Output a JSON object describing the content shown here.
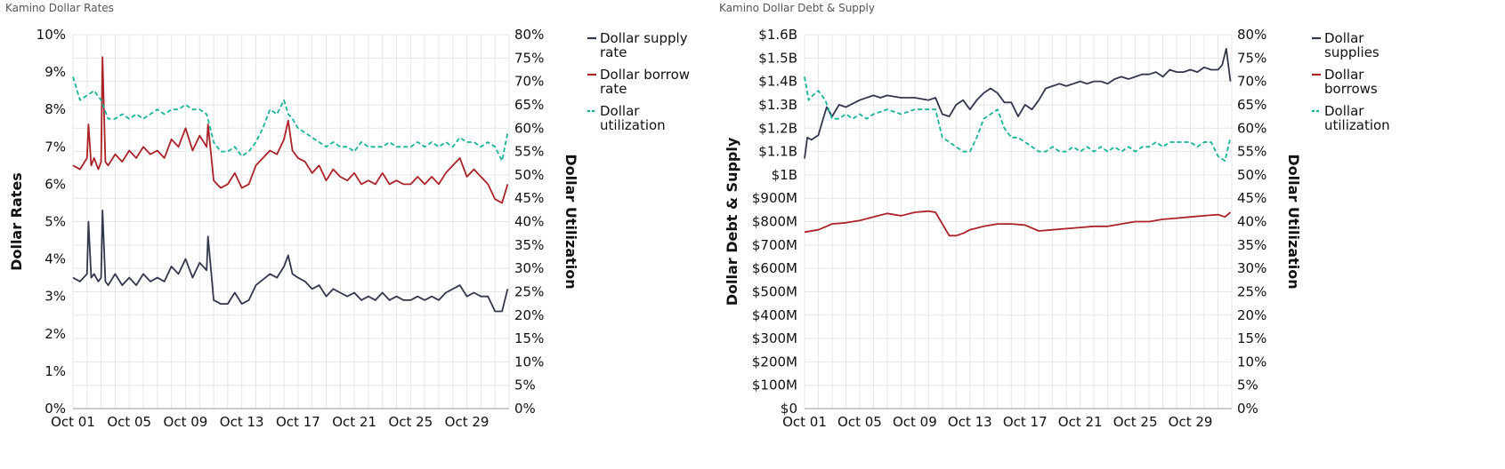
{
  "colors": {
    "supply": "#32374b",
    "borrow": "#ab2228",
    "utilization": "#1ab39a",
    "grid": "#e6e6e6"
  },
  "chart_data": [
    {
      "type": "line",
      "title": "Kamino Dollar Rates",
      "ylabel": "Dollar Rates",
      "y2label": "Dollar Utilization",
      "x_ticks": [
        "Oct 01",
        "Oct 05",
        "Oct 09",
        "Oct 13",
        "Oct 17",
        "Oct 21",
        "Oct 25",
        "Oct 29"
      ],
      "xlim": [
        0,
        31
      ],
      "y_ticks": [
        "0%",
        "1%",
        "2%",
        "3%",
        "4%",
        "5%",
        "6%",
        "7%",
        "8%",
        "9%",
        "10%"
      ],
      "ylim": [
        0,
        10
      ],
      "y2_ticks": [
        "0%",
        "5%",
        "10%",
        "15%",
        "20%",
        "25%",
        "30%",
        "35%",
        "40%",
        "45%",
        "50%",
        "55%",
        "60%",
        "65%",
        "70%",
        "75%",
        "80%"
      ],
      "y2lim": [
        0,
        80
      ],
      "legend": [
        "Dollar supply rate",
        "Dollar borrow rate",
        "Dollar utilization"
      ],
      "legend_position": "right",
      "grid": true,
      "series": [
        {
          "name": "Dollar supply rate",
          "axis": "left",
          "style": "solid",
          "x": [
            0,
            0.5,
            1,
            1.1,
            1.3,
            1.5,
            1.8,
            2,
            2.1,
            2.3,
            2.5,
            3,
            3.5,
            4,
            4.5,
            5,
            5.5,
            6,
            6.5,
            7,
            7.5,
            8,
            8.5,
            9,
            9.5,
            9.6,
            10,
            10.5,
            11,
            11.5,
            12,
            12.5,
            13,
            14,
            14.5,
            15,
            15.3,
            15.6,
            16,
            16.5,
            17,
            17.5,
            18,
            18.5,
            19,
            19.5,
            20,
            20.5,
            21,
            21.5,
            22,
            22.5,
            23,
            23.5,
            24,
            24.5,
            25,
            25.5,
            26,
            26.5,
            27,
            27.5,
            28,
            28.5,
            29,
            29.5,
            30,
            30.5,
            30.9
          ],
          "values": [
            3.5,
            3.4,
            3.6,
            5.0,
            3.5,
            3.6,
            3.4,
            3.5,
            5.3,
            3.4,
            3.3,
            3.6,
            3.3,
            3.5,
            3.3,
            3.6,
            3.4,
            3.5,
            3.4,
            3.8,
            3.6,
            4.0,
            3.5,
            3.9,
            3.7,
            4.6,
            2.9,
            2.8,
            2.8,
            3.1,
            2.8,
            2.9,
            3.3,
            3.6,
            3.5,
            3.8,
            4.1,
            3.6,
            3.5,
            3.4,
            3.2,
            3.3,
            3.0,
            3.2,
            3.1,
            3.0,
            3.1,
            2.9,
            3.0,
            2.9,
            3.1,
            2.9,
            3.0,
            2.9,
            2.9,
            3.0,
            2.9,
            3.0,
            2.9,
            3.1,
            3.2,
            3.3,
            3.0,
            3.1,
            3.0,
            3.0,
            2.6,
            2.6,
            3.2
          ]
        },
        {
          "name": "Dollar borrow rate",
          "axis": "left",
          "style": "solid",
          "x": [
            0,
            0.5,
            1,
            1.1,
            1.3,
            1.5,
            1.8,
            2,
            2.1,
            2.3,
            2.5,
            3,
            3.5,
            4,
            4.5,
            5,
            5.5,
            6,
            6.5,
            7,
            7.5,
            8,
            8.5,
            9,
            9.5,
            9.6,
            10,
            10.5,
            11,
            11.5,
            12,
            12.5,
            13,
            14,
            14.5,
            15,
            15.3,
            15.6,
            16,
            16.5,
            17,
            17.5,
            18,
            18.5,
            19,
            19.5,
            20,
            20.5,
            21,
            21.5,
            22,
            22.5,
            23,
            23.5,
            24,
            24.5,
            25,
            25.5,
            26,
            26.5,
            27,
            27.5,
            28,
            28.5,
            29,
            29.5,
            30,
            30.5,
            30.9
          ],
          "values": [
            6.5,
            6.4,
            6.7,
            7.6,
            6.5,
            6.7,
            6.4,
            6.6,
            9.4,
            6.6,
            6.5,
            6.8,
            6.6,
            6.9,
            6.7,
            7.0,
            6.8,
            6.9,
            6.7,
            7.2,
            7.0,
            7.5,
            6.9,
            7.3,
            7.0,
            7.6,
            6.1,
            5.9,
            6.0,
            6.3,
            5.9,
            6.0,
            6.5,
            6.9,
            6.8,
            7.2,
            7.7,
            6.9,
            6.7,
            6.6,
            6.3,
            6.5,
            6.1,
            6.4,
            6.2,
            6.1,
            6.3,
            6.0,
            6.1,
            6.0,
            6.3,
            6.0,
            6.1,
            6.0,
            6.0,
            6.2,
            6.0,
            6.2,
            6.0,
            6.3,
            6.5,
            6.7,
            6.2,
            6.4,
            6.2,
            6.0,
            5.6,
            5.5,
            6.0
          ]
        },
        {
          "name": "Dollar utilization",
          "axis": "right",
          "style": "dashed",
          "x": [
            0,
            0.5,
            1,
            1.5,
            2,
            2.5,
            3,
            3.5,
            4,
            4.5,
            5,
            5.5,
            6,
            6.5,
            7,
            7.5,
            8,
            8.5,
            9,
            9.5,
            10,
            10.5,
            11,
            11.5,
            12,
            12.5,
            13,
            13.5,
            14,
            14.5,
            15,
            15.3,
            15.6,
            16,
            16.5,
            17,
            17.5,
            18,
            18.5,
            19,
            19.5,
            20,
            20.5,
            21,
            21.5,
            22,
            22.5,
            23,
            23.5,
            24,
            24.5,
            25,
            25.5,
            26,
            26.5,
            27,
            27.5,
            28,
            28.5,
            29,
            29.5,
            30,
            30.5,
            30.9
          ],
          "values": [
            71,
            66,
            67,
            68,
            66,
            62,
            62,
            63,
            62,
            63,
            62,
            63,
            64,
            63,
            64,
            64,
            65,
            64,
            64,
            63,
            57,
            55,
            55,
            56,
            54,
            55,
            57,
            60,
            64,
            63,
            66,
            63,
            62,
            60,
            59,
            58,
            57,
            56,
            57,
            56,
            56,
            55,
            57,
            56,
            56,
            56,
            57,
            56,
            56,
            56,
            57,
            56,
            57,
            56,
            57,
            56,
            58,
            57,
            57,
            56,
            57,
            56,
            53,
            59
          ]
        }
      ]
    },
    {
      "type": "line",
      "title": "Kamino Dollar Debt & Supply",
      "ylabel": "Dollar Debt & Supply",
      "y2label": "Dollar Utilization",
      "x_ticks": [
        "Oct 01",
        "Oct 05",
        "Oct 09",
        "Oct 13",
        "Oct 17",
        "Oct 21",
        "Oct 25",
        "Oct 29"
      ],
      "xlim": [
        0,
        31
      ],
      "y_ticks": [
        "$0",
        "$100M",
        "$200M",
        "$300M",
        "$400M",
        "$500M",
        "$600M",
        "$700M",
        "$800M",
        "$900M",
        "$1B",
        "$1.1B",
        "$1.2B",
        "$1.3B",
        "$1.4B",
        "$1.5B",
        "$1.6B"
      ],
      "ylim": [
        0,
        1.6
      ],
      "y2_ticks": [
        "0%",
        "5%",
        "10%",
        "15%",
        "20%",
        "25%",
        "30%",
        "35%",
        "40%",
        "45%",
        "50%",
        "55%",
        "60%",
        "65%",
        "70%",
        "75%",
        "80%"
      ],
      "y2lim": [
        0,
        80
      ],
      "legend": [
        "Dollar supplies",
        "Dollar borrows",
        "Dollar utilization"
      ],
      "legend_position": "right",
      "grid": true,
      "series": [
        {
          "name": "Dollar supplies",
          "axis": "left",
          "style": "solid",
          "x": [
            0,
            0.2,
            0.5,
            1,
            1.3,
            1.6,
            2,
            2.5,
            3,
            4,
            5,
            5.5,
            6,
            7,
            8,
            9,
            9.5,
            10,
            10.5,
            11,
            11.5,
            12,
            12.5,
            13,
            13.5,
            14,
            14.5,
            15,
            15.5,
            16,
            16.5,
            17,
            17.5,
            18,
            18.5,
            19,
            19.5,
            20,
            20.5,
            21,
            21.5,
            22,
            22.5,
            23,
            23.5,
            24,
            24.5,
            25,
            25.5,
            26,
            26.5,
            27,
            27.5,
            28,
            28.5,
            29,
            29.5,
            30,
            30.3,
            30.6,
            30.9
          ],
          "values": [
            1.07,
            1.16,
            1.15,
            1.17,
            1.23,
            1.29,
            1.25,
            1.3,
            1.29,
            1.32,
            1.34,
            1.33,
            1.34,
            1.33,
            1.33,
            1.32,
            1.33,
            1.26,
            1.25,
            1.3,
            1.32,
            1.28,
            1.32,
            1.35,
            1.37,
            1.35,
            1.31,
            1.31,
            1.25,
            1.3,
            1.28,
            1.32,
            1.37,
            1.38,
            1.39,
            1.38,
            1.39,
            1.4,
            1.39,
            1.4,
            1.4,
            1.39,
            1.41,
            1.42,
            1.41,
            1.42,
            1.43,
            1.43,
            1.44,
            1.42,
            1.45,
            1.44,
            1.44,
            1.45,
            1.44,
            1.46,
            1.45,
            1.45,
            1.47,
            1.54,
            1.4
          ]
        },
        {
          "name": "Dollar borrows",
          "axis": "left",
          "style": "solid",
          "x": [
            0,
            1,
            2,
            3,
            4,
            5,
            6,
            7,
            8,
            9,
            9.5,
            10,
            10.5,
            11,
            11.5,
            12,
            13,
            14,
            15,
            16,
            17,
            18,
            19,
            20,
            21,
            22,
            23,
            24,
            25,
            26,
            27,
            28,
            29,
            30,
            30.5,
            30.9
          ],
          "values": [
            0.755,
            0.765,
            0.79,
            0.795,
            0.805,
            0.82,
            0.835,
            0.825,
            0.84,
            0.845,
            0.84,
            0.79,
            0.74,
            0.74,
            0.75,
            0.765,
            0.78,
            0.79,
            0.79,
            0.785,
            0.76,
            0.765,
            0.77,
            0.775,
            0.78,
            0.78,
            0.79,
            0.8,
            0.8,
            0.81,
            0.815,
            0.82,
            0.825,
            0.83,
            0.82,
            0.84
          ]
        },
        {
          "name": "Dollar utilization",
          "axis": "right",
          "style": "dashed",
          "x": [
            0,
            0.3,
            0.6,
            1,
            1.5,
            2,
            2.5,
            3,
            3.5,
            4,
            4.5,
            5,
            6,
            7,
            8,
            9,
            9.5,
            10,
            10.5,
            11,
            11.5,
            12,
            12.5,
            13,
            13.5,
            14,
            14.5,
            15,
            15.5,
            16,
            16.5,
            17,
            17.5,
            18,
            18.5,
            19,
            19.5,
            20,
            20.5,
            21,
            21.5,
            22,
            22.5,
            23,
            23.5,
            24,
            24.5,
            25,
            25.5,
            26,
            26.5,
            27,
            27.5,
            28,
            28.5,
            29,
            29.5,
            30,
            30.5,
            30.9
          ],
          "values": [
            71,
            66,
            67,
            68,
            66,
            62,
            62,
            63,
            62,
            63,
            62,
            63,
            64,
            63,
            64,
            64,
            64,
            58,
            57,
            56,
            55,
            55,
            58,
            62,
            63,
            64,
            60,
            58,
            58,
            57,
            56,
            55,
            55,
            56,
            55,
            55,
            56,
            55,
            56,
            55,
            56,
            55,
            56,
            55,
            56,
            55,
            56,
            56,
            57,
            56,
            57,
            57,
            57,
            57,
            56,
            57,
            57,
            54,
            53,
            58
          ]
        }
      ]
    }
  ]
}
